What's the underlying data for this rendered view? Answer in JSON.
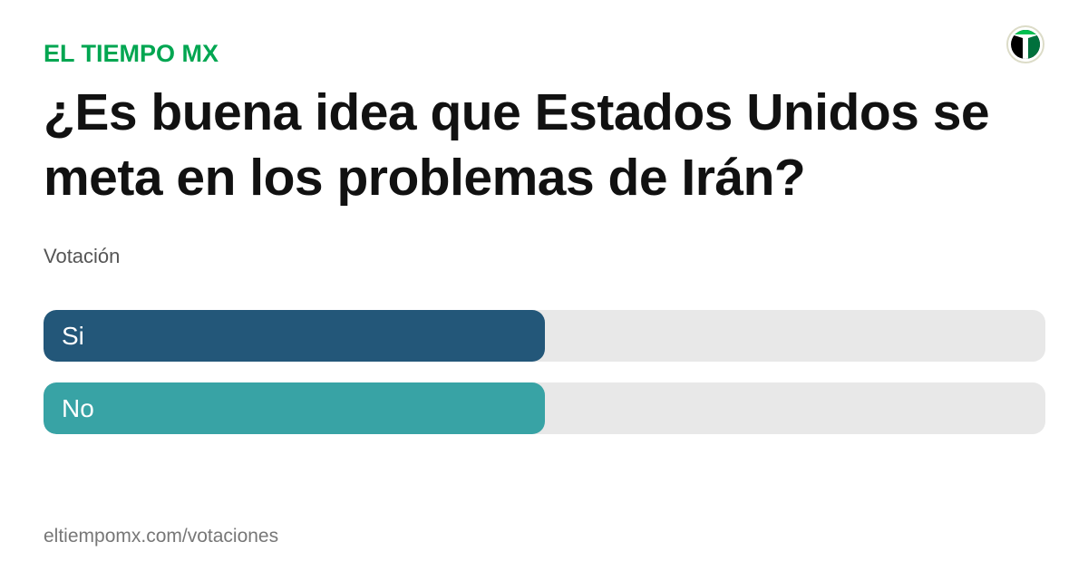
{
  "brand": "EL TIEMPO MX",
  "title": "¿Es buena idea que Estados Unidos se meta en los problemas de Irán?",
  "subtitle": "Votación",
  "footer": "eltiempomx.com/votaciones",
  "colors": {
    "brand": "#00a651",
    "si": "#235779",
    "no": "#38a3a5",
    "track": "#e8e8e8"
  },
  "chart_data": {
    "type": "bar",
    "orientation": "horizontal",
    "categories": [
      "Si",
      "No"
    ],
    "values": [
      50,
      50
    ],
    "unit": "percent",
    "xlim": [
      0,
      100
    ]
  }
}
